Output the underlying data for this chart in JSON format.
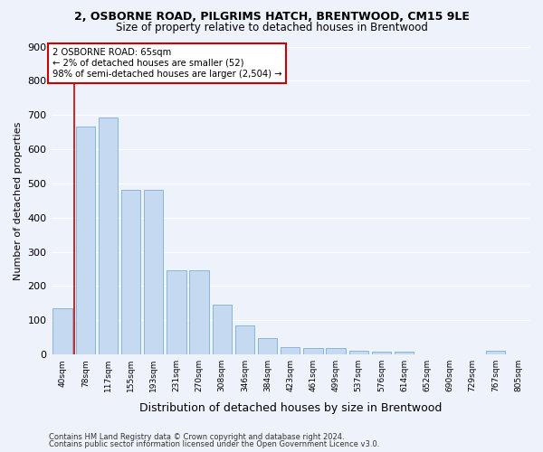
{
  "title1": "2, OSBORNE ROAD, PILGRIMS HATCH, BRENTWOOD, CM15 9LE",
  "title2": "Size of property relative to detached houses in Brentwood",
  "xlabel": "Distribution of detached houses by size in Brentwood",
  "ylabel": "Number of detached properties",
  "bar_color": "#c5d9f0",
  "bar_edge_color": "#7aafd4",
  "annotation_box_color": "#cc0000",
  "annotation_line1": "2 OSBORNE ROAD: 65sqm",
  "annotation_line2": "← 2% of detached houses are smaller (52)",
  "annotation_line3": "98% of semi-detached houses are larger (2,504) →",
  "categories": [
    "40sqm",
    "78sqm",
    "117sqm",
    "155sqm",
    "193sqm",
    "231sqm",
    "270sqm",
    "308sqm",
    "346sqm",
    "384sqm",
    "423sqm",
    "461sqm",
    "499sqm",
    "537sqm",
    "576sqm",
    "614sqm",
    "652sqm",
    "690sqm",
    "729sqm",
    "767sqm",
    "805sqm"
  ],
  "values": [
    135,
    667,
    693,
    480,
    480,
    246,
    246,
    147,
    85,
    48,
    22,
    20,
    18,
    10,
    9,
    8,
    1,
    0,
    0,
    11,
    0
  ],
  "vline_bar_index": 1,
  "ylim": [
    0,
    900
  ],
  "yticks": [
    0,
    100,
    200,
    300,
    400,
    500,
    600,
    700,
    800,
    900
  ],
  "footer1": "Contains HM Land Registry data © Crown copyright and database right 2024.",
  "footer2": "Contains public sector information licensed under the Open Government Licence v3.0.",
  "bg_color": "#eef2fa",
  "grid_color": "#ffffff",
  "title1_fontsize": 9,
  "title2_fontsize": 8.5,
  "ylabel_fontsize": 8,
  "xlabel_fontsize": 9
}
